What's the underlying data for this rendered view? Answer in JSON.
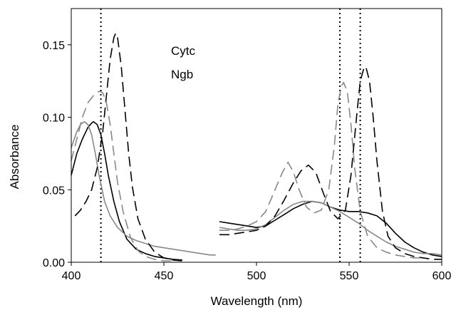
{
  "chart_data": {
    "type": "line",
    "xlabel": "Wavelength (nm)",
    "ylabel": "Absorbance",
    "xlim": [
      400,
      600
    ],
    "ylim": [
      0,
      0.175
    ],
    "xticks": [
      400,
      450,
      500,
      550,
      600
    ],
    "xtick_labels": [
      "400",
      "450",
      "500",
      "550",
      "600"
    ],
    "yticks": [
      0,
      0.05,
      0.1,
      0.15
    ],
    "ytick_labels": [
      "0.00",
      "0.05",
      "0.10",
      "0.15"
    ],
    "grid": false,
    "legend": {
      "entries": [
        "Cytc",
        "Ngb"
      ],
      "placement": "top-center"
    },
    "reference_lines_x": [
      416,
      545,
      556
    ],
    "series": [
      {
        "color": "#000000",
        "dash": "solid",
        "x": [
          400,
          403,
          406,
          409,
          411,
          412,
          414,
          416,
          418,
          420,
          423,
          426,
          430,
          435,
          440,
          445,
          450,
          455,
          460
        ],
        "y": [
          0.06,
          0.075,
          0.085,
          0.093,
          0.096,
          0.097,
          0.095,
          0.088,
          0.075,
          0.06,
          0.042,
          0.028,
          0.016,
          0.009,
          0.006,
          0.004,
          0.003,
          0.002,
          0.0015
        ]
      },
      {
        "color": "#000000",
        "dash": "solid",
        "x": [
          480,
          485,
          490,
          495,
          500,
          505,
          510,
          515,
          520,
          525,
          530,
          535,
          540,
          545,
          550,
          555,
          560,
          565,
          570,
          575,
          580,
          585,
          590,
          595,
          600
        ],
        "y": [
          0.028,
          0.027,
          0.026,
          0.025,
          0.024,
          0.025,
          0.029,
          0.033,
          0.037,
          0.04,
          0.042,
          0.041,
          0.038,
          0.036,
          0.035,
          0.035,
          0.034,
          0.032,
          0.027,
          0.02,
          0.014,
          0.01,
          0.007,
          0.005,
          0.004
        ]
      },
      {
        "color": "#888888",
        "dash": "solid",
        "x": [
          400,
          403,
          405,
          407,
          409,
          411,
          413,
          415,
          418,
          421,
          425,
          430,
          435,
          440,
          445,
          450,
          455,
          460,
          465,
          470,
          475,
          478
        ],
        "y": [
          0.079,
          0.09,
          0.095,
          0.097,
          0.095,
          0.088,
          0.075,
          0.06,
          0.042,
          0.032,
          0.024,
          0.018,
          0.015,
          0.013,
          0.011,
          0.01,
          0.009,
          0.008,
          0.007,
          0.006,
          0.005,
          0.005
        ]
      },
      {
        "color": "#888888",
        "dash": "solid",
        "x": [
          480,
          485,
          490,
          495,
          500,
          505,
          510,
          515,
          520,
          525,
          530,
          535,
          540,
          545,
          550,
          555,
          560,
          565,
          570,
          575,
          580,
          585,
          590,
          595,
          600
        ],
        "y": [
          0.024,
          0.023,
          0.022,
          0.022,
          0.023,
          0.026,
          0.031,
          0.036,
          0.04,
          0.042,
          0.042,
          0.041,
          0.038,
          0.035,
          0.031,
          0.027,
          0.022,
          0.018,
          0.014,
          0.011,
          0.009,
          0.007,
          0.006,
          0.006,
          0.005
        ]
      },
      {
        "color": "#000000",
        "dash": "dashed",
        "x": [
          402,
          405,
          408,
          411,
          414,
          417,
          419,
          421,
          423,
          424,
          425,
          427,
          429,
          431,
          433,
          436,
          440,
          445,
          450,
          455,
          460
        ],
        "y": [
          0.032,
          0.036,
          0.042,
          0.05,
          0.065,
          0.09,
          0.115,
          0.14,
          0.155,
          0.158,
          0.155,
          0.135,
          0.105,
          0.075,
          0.052,
          0.03,
          0.016,
          0.007,
          0.003,
          0.0015,
          0.001
        ]
      },
      {
        "color": "#000000",
        "dash": "dashed",
        "x": [
          480,
          485,
          490,
          495,
          500,
          505,
          510,
          515,
          520,
          524,
          528,
          532,
          536,
          540,
          544,
          548,
          551,
          554,
          556,
          558,
          559,
          561,
          563,
          565,
          568,
          571,
          575,
          580,
          585,
          590,
          595,
          600
        ],
        "y": [
          0.019,
          0.019,
          0.02,
          0.021,
          0.022,
          0.025,
          0.032,
          0.043,
          0.055,
          0.063,
          0.067,
          0.062,
          0.048,
          0.035,
          0.03,
          0.036,
          0.06,
          0.1,
          0.125,
          0.134,
          0.135,
          0.125,
          0.1,
          0.07,
          0.035,
          0.018,
          0.01,
          0.006,
          0.004,
          0.003,
          0.002,
          0.002
        ]
      },
      {
        "color": "#888888",
        "dash": "dashed",
        "x": [
          400,
          403,
          406,
          409,
          412,
          415,
          417,
          419,
          421,
          423,
          425,
          428,
          432,
          436,
          440,
          445,
          450,
          455
        ],
        "y": [
          0.07,
          0.085,
          0.1,
          0.11,
          0.115,
          0.118,
          0.117,
          0.11,
          0.095,
          0.075,
          0.055,
          0.035,
          0.017,
          0.008,
          0.004,
          0.002,
          0.001,
          0.001
        ]
      },
      {
        "color": "#888888",
        "dash": "dashed",
        "x": [
          480,
          485,
          490,
          495,
          500,
          505,
          510,
          514,
          517,
          520,
          523,
          527,
          531,
          535,
          539,
          542,
          544,
          546,
          547,
          549,
          551,
          553,
          556,
          560,
          565,
          570,
          575,
          580,
          585,
          590
        ],
        "y": [
          0.022,
          0.022,
          0.023,
          0.025,
          0.028,
          0.035,
          0.05,
          0.062,
          0.069,
          0.062,
          0.05,
          0.038,
          0.034,
          0.036,
          0.05,
          0.08,
          0.11,
          0.122,
          0.124,
          0.118,
          0.095,
          0.065,
          0.035,
          0.018,
          0.01,
          0.007,
          0.005,
          0.004,
          0.003,
          0.003
        ]
      }
    ]
  }
}
